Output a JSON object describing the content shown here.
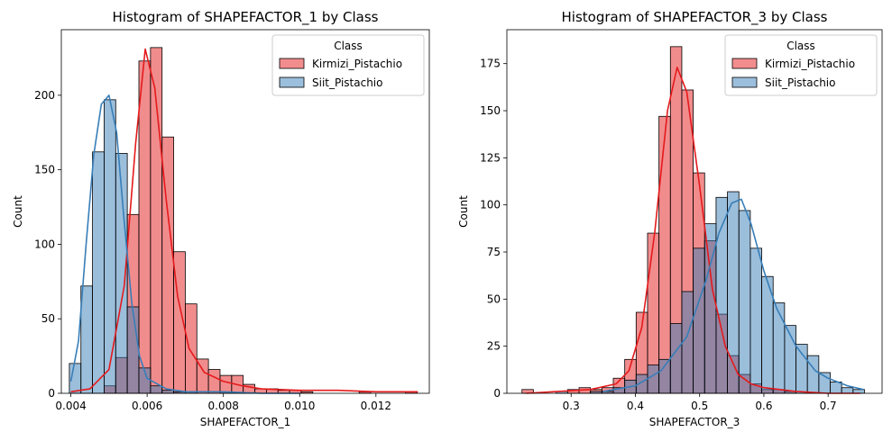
{
  "chart_data": [
    {
      "type": "bar",
      "title": "Histogram of SHAPEFACTOR_1 by Class",
      "xlabel": "SHAPEFACTOR_1",
      "ylabel": "Count",
      "xlim": [
        0.00375,
        0.0134
      ],
      "ylim": [
        0,
        244
      ],
      "xticks": [
        0.004,
        0.006,
        0.008,
        0.01,
        0.012
      ],
      "xtick_labels": [
        "0.004",
        "0.006",
        "0.008",
        "0.010",
        "0.012"
      ],
      "yticks": [
        0,
        50,
        100,
        150,
        200
      ],
      "ytick_labels": [
        "0",
        "50",
        "100",
        "150",
        "200"
      ],
      "grid": false,
      "legend": {
        "title": "Class",
        "position": "top-right"
      },
      "bins": {
        "start": 0.00396,
        "width": 0.000304,
        "count": 30
      },
      "series": [
        {
          "name": "Kirmizi_Pistachio",
          "color": "#e41a1c",
          "counts": [
            0,
            0,
            0,
            5,
            24,
            120,
            223,
            232,
            172,
            95,
            60,
            23,
            16,
            12,
            12,
            6,
            3,
            3,
            2,
            2,
            1,
            0,
            0,
            0,
            0,
            1,
            0,
            0,
            0,
            1
          ],
          "kde": [
            [
              0.004,
              1
            ],
            [
              0.0045,
              3
            ],
            [
              0.005,
              16
            ],
            [
              0.0054,
              72
            ],
            [
              0.0057,
              168
            ],
            [
              0.00595,
              231
            ],
            [
              0.0062,
              205
            ],
            [
              0.0065,
              130
            ],
            [
              0.0068,
              65
            ],
            [
              0.0071,
              30
            ],
            [
              0.0075,
              14
            ],
            [
              0.008,
              8
            ],
            [
              0.0085,
              5
            ],
            [
              0.009,
              3
            ],
            [
              0.01,
              2
            ],
            [
              0.011,
              2
            ],
            [
              0.012,
              1
            ],
            [
              0.0131,
              1
            ]
          ]
        },
        {
          "name": "Siit_Pistachio",
          "color": "#377eb8",
          "counts": [
            20,
            72,
            162,
            197,
            161,
            58,
            17,
            5,
            2,
            1,
            1,
            0,
            0,
            1,
            0,
            0,
            0,
            0,
            0,
            0,
            0,
            0,
            0,
            0,
            0,
            0,
            0,
            0,
            0,
            0
          ],
          "kde": [
            [
              0.004,
              8
            ],
            [
              0.0042,
              35
            ],
            [
              0.0044,
              100
            ],
            [
              0.0046,
              160
            ],
            [
              0.0048,
              194
            ],
            [
              0.005,
              200
            ],
            [
              0.0052,
              175
            ],
            [
              0.0054,
              115
            ],
            [
              0.0056,
              60
            ],
            [
              0.0058,
              25
            ],
            [
              0.006,
              10
            ],
            [
              0.0065,
              3
            ],
            [
              0.007,
              1
            ],
            [
              0.008,
              1
            ],
            [
              0.009,
              0
            ],
            [
              0.01,
              0
            ]
          ]
        }
      ]
    },
    {
      "type": "bar",
      "title": "Histogram of SHAPEFACTOR_3 by Class",
      "xlabel": "SHAPEFACTOR_3",
      "ylabel": "Count",
      "xlim": [
        0.2,
        0.784
      ],
      "ylim": [
        0,
        193
      ],
      "xticks": [
        0.3,
        0.4,
        0.5,
        0.6,
        0.7
      ],
      "xtick_labels": [
        "0.3",
        "0.4",
        "0.5",
        "0.6",
        "0.7"
      ],
      "yticks": [
        0,
        25,
        50,
        75,
        100,
        125,
        150,
        175
      ],
      "ytick_labels": [
        "0",
        "25",
        "50",
        "75",
        "100",
        "125",
        "150",
        "175"
      ],
      "grid": false,
      "legend": {
        "title": "Class",
        "position": "top-right"
      },
      "bins": {
        "start": 0.2235,
        "width": 0.01777,
        "count": 30
      },
      "series": [
        {
          "name": "Kirmizi_Pistachio",
          "color": "#e41a1c",
          "counts": [
            2,
            0,
            0,
            0,
            2,
            3,
            2,
            3,
            8,
            18,
            43,
            85,
            147,
            184,
            161,
            117,
            81,
            42,
            20,
            10,
            5,
            2,
            2,
            1,
            0,
            0,
            0,
            0,
            0,
            0
          ],
          "kde": [
            [
              0.23,
              0
            ],
            [
              0.28,
              1
            ],
            [
              0.33,
              2
            ],
            [
              0.37,
              5
            ],
            [
              0.39,
              12
            ],
            [
              0.41,
              35
            ],
            [
              0.43,
              85
            ],
            [
              0.45,
              150
            ],
            [
              0.465,
              173
            ],
            [
              0.48,
              160
            ],
            [
              0.5,
              110
            ],
            [
              0.52,
              55
            ],
            [
              0.54,
              25
            ],
            [
              0.56,
              10
            ],
            [
              0.58,
              5
            ],
            [
              0.6,
              3
            ],
            [
              0.65,
              1
            ],
            [
              0.7,
              0
            ],
            [
              0.75,
              0
            ]
          ]
        },
        {
          "name": "Siit_Pistachio",
          "color": "#377eb8",
          "counts": [
            0,
            0,
            0,
            1,
            0,
            0,
            1,
            1,
            3,
            7,
            10,
            15,
            18,
            37,
            54,
            77,
            90,
            104,
            107,
            97,
            77,
            62,
            48,
            36,
            26,
            20,
            11,
            6,
            3,
            2
          ],
          "kde": [
            [
              0.35,
              1
            ],
            [
              0.4,
              4
            ],
            [
              0.44,
              12
            ],
            [
              0.48,
              30
            ],
            [
              0.51,
              60
            ],
            [
              0.53,
              85
            ],
            [
              0.55,
              101
            ],
            [
              0.565,
              103
            ],
            [
              0.58,
              90
            ],
            [
              0.6,
              65
            ],
            [
              0.62,
              45
            ],
            [
              0.65,
              25
            ],
            [
              0.68,
              12
            ],
            [
              0.7,
              8
            ],
            [
              0.73,
              4
            ],
            [
              0.755,
              2
            ]
          ]
        }
      ]
    }
  ]
}
